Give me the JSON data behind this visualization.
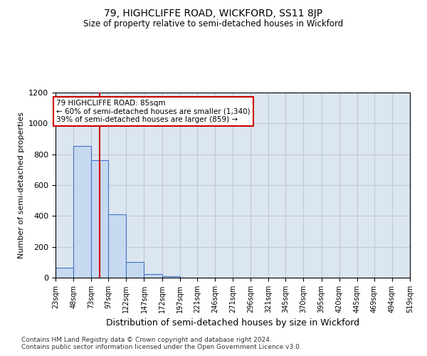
{
  "title": "79, HIGHCLIFFE ROAD, WICKFORD, SS11 8JP",
  "subtitle": "Size of property relative to semi-detached houses in Wickford",
  "xlabel": "Distribution of semi-detached houses by size in Wickford",
  "ylabel": "Number of semi-detached properties",
  "footnote1": "Contains HM Land Registry data © Crown copyright and database right 2024.",
  "footnote2": "Contains public sector information licensed under the Open Government Licence v3.0.",
  "annotation_title": "79 HIGHCLIFFE ROAD: 85sqm",
  "annotation_line1": "← 60% of semi-detached houses are smaller (1,340)",
  "annotation_line2": "39% of semi-detached houses are larger (859) →",
  "property_size": 85,
  "bar_edges": [
    23,
    48,
    73,
    97,
    122,
    147,
    172,
    197,
    221,
    246,
    271,
    296,
    321,
    345,
    370,
    395,
    420,
    445,
    469,
    494,
    519
  ],
  "bar_heights": [
    65,
    855,
    760,
    410,
    100,
    25,
    10,
    0,
    0,
    0,
    0,
    0,
    0,
    0,
    0,
    0,
    0,
    0,
    0,
    0
  ],
  "bar_color": "#c6d9f1",
  "bar_edge_color": "#4472c4",
  "bar_edge_width": 0.8,
  "red_line_color": "#cc0000",
  "annotation_box_color": "#cc0000",
  "grid_color": "#c0c8d8",
  "bg_color": "#dce6f1",
  "ylim": [
    0,
    1200
  ],
  "yticks": [
    0,
    200,
    400,
    600,
    800,
    1000,
    1200
  ],
  "tick_labels": [
    "23sqm",
    "48sqm",
    "73sqm",
    "97sqm",
    "122sqm",
    "147sqm",
    "172sqm",
    "197sqm",
    "221sqm",
    "246sqm",
    "271sqm",
    "296sqm",
    "321sqm",
    "345sqm",
    "370sqm",
    "395sqm",
    "420sqm",
    "445sqm",
    "469sqm",
    "494sqm",
    "519sqm"
  ]
}
